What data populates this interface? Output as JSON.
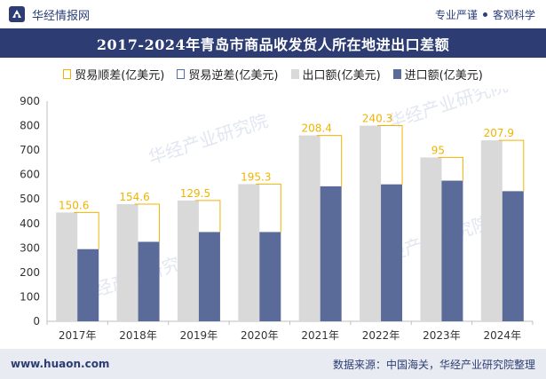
{
  "header": {
    "brand_name": "华经情报网",
    "tagline_left": "专业严谨",
    "tagline_right": "客观科学"
  },
  "title": "2017-2024年青岛市商品收发货人所在地进出口差额",
  "legend": {
    "trade_surplus": "贸易顺差(亿美元)",
    "trade_deficit": "贸易逆差(亿美元)",
    "export": "出口额(亿美元)",
    "import": "进口额(亿美元)"
  },
  "watermark": "华经产业研究院",
  "footer": {
    "site": "www.huaon.com",
    "source": "数据来源：中国海关，华经产业研究院整理"
  },
  "colors": {
    "header_bg": "#2d3d73",
    "export": "#d9d9d9",
    "import": "#5a6a99",
    "surplus_line": "#f0b400",
    "deficit_line": "#5a6ea0",
    "footer_bg": "#e8ebf2"
  },
  "chart_data": {
    "type": "bar",
    "categories": [
      "2017年",
      "2018年",
      "2019年",
      "2020年",
      "2021年",
      "2022年",
      "2023年",
      "2024年"
    ],
    "series": [
      {
        "name": "出口额(亿美元)",
        "values": [
          445,
          479,
          494,
          561,
          760,
          800,
          670,
          740
        ]
      },
      {
        "name": "进口额(亿美元)",
        "values": [
          295,
          325,
          365,
          365,
          552,
          560,
          575,
          532
        ]
      },
      {
        "name": "贸易顺差(亿美元)",
        "values": [
          150.6,
          154.6,
          129.5,
          195.3,
          208.4,
          240.3,
          95,
          207.9
        ]
      }
    ],
    "surplus_labels": [
      "150.6",
      "154.6",
      "129.5",
      "195.3",
      "208.4",
      "240.3",
      "95",
      "207.9"
    ],
    "y_ticks": [
      0,
      100,
      200,
      300,
      400,
      500,
      600,
      700,
      800,
      900
    ],
    "ylim": [
      0,
      900
    ],
    "xlabel": "",
    "ylabel": "",
    "grid": false,
    "legend_position": "top"
  }
}
